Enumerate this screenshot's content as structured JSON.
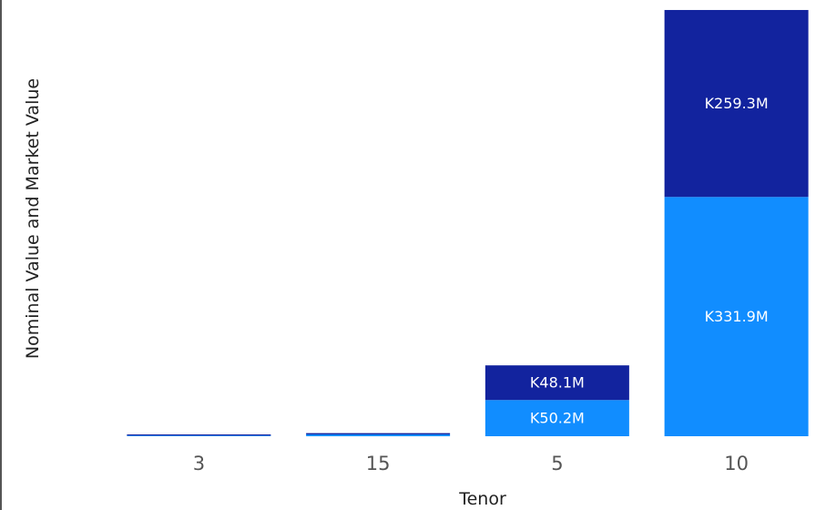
{
  "chart_data": {
    "type": "bar",
    "stacked": true,
    "xlabel": "Tenor",
    "ylabel": "Nominal Value and Market Value",
    "categories": [
      "3",
      "15",
      "5",
      "10"
    ],
    "series": [
      {
        "color": "#118DFF",
        "values": [
          1.0,
          2.5,
          50.2,
          331.9
        ],
        "labels": [
          "",
          "",
          "K50.2M",
          "K331.9M"
        ]
      },
      {
        "color": "#12239E",
        "values": [
          1.5,
          1.8,
          48.1,
          259.3
        ],
        "labels": [
          "",
          "",
          "K48.1M",
          "K259.3M"
        ]
      }
    ],
    "ylim": [
      0,
      600
    ],
    "grid": false,
    "legend": "none"
  }
}
